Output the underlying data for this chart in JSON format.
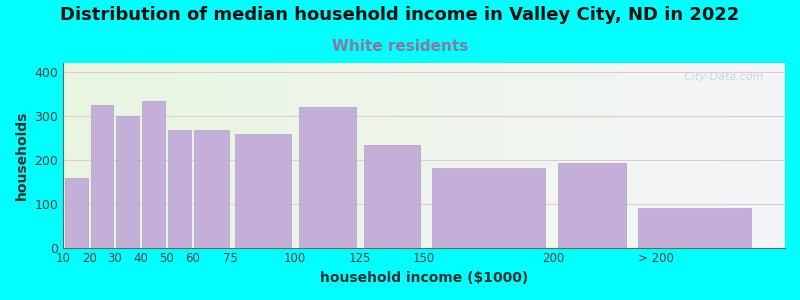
{
  "title": "Distribution of median household income in Valley City, ND in 2022",
  "subtitle": "White residents",
  "xlabel": "household income ($1000)",
  "ylabel": "households",
  "background_color": "#00FFFF",
  "plot_bg_gradient_left": "#e8f5e0",
  "plot_bg_gradient_right": "#f5f5f8",
  "bar_color": "#c4afd8",
  "bar_edge_color": "#b09fc8",
  "subtitle_color": "#8878a0",
  "watermark_color": "#c0d0dc",
  "grid_color": "#e8c8c8",
  "title_fontsize": 13,
  "subtitle_fontsize": 11,
  "axis_label_fontsize": 10,
  "ylim": [
    0,
    420
  ],
  "yticks": [
    0,
    100,
    200,
    300,
    400
  ],
  "left_edges": [
    10,
    20,
    30,
    40,
    50,
    60,
    75,
    100,
    125,
    150,
    200,
    230
  ],
  "bar_widths": [
    10,
    10,
    10,
    10,
    10,
    15,
    25,
    25,
    25,
    50,
    30,
    50
  ],
  "values": [
    158,
    325,
    300,
    333,
    268,
    268,
    258,
    320,
    233,
    180,
    192,
    90
  ],
  "xtick_positions": [
    10,
    20,
    30,
    40,
    50,
    60,
    75,
    100,
    125,
    150,
    200,
    240
  ],
  "xtick_labels": [
    "10",
    "20",
    "30",
    "40",
    "50",
    "60",
    "75",
    "100",
    "125",
    "150",
    "200",
    "> 200"
  ],
  "xlim": [
    10,
    290
  ],
  "last_bar_separate": true
}
